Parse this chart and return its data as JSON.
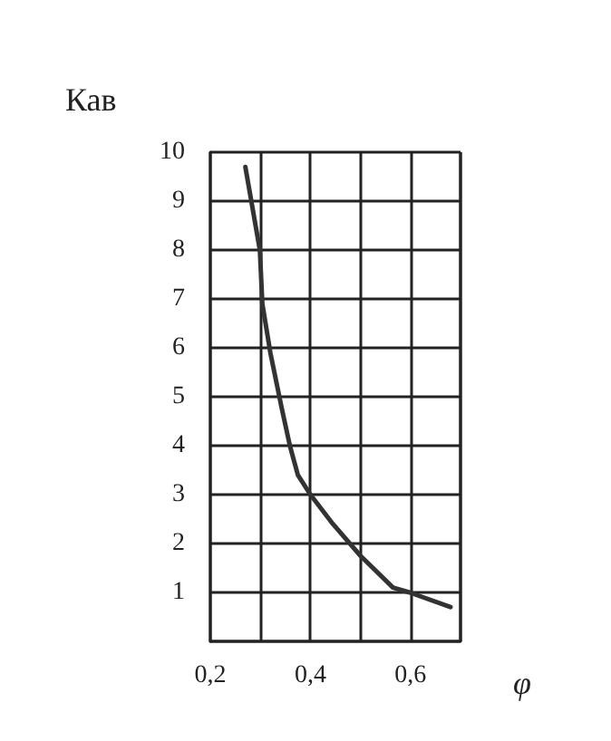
{
  "chart_data": {
    "type": "line",
    "xlabel": "φ",
    "ylabel": "Кав",
    "x": [
      0.27,
      0.299,
      0.304,
      0.32,
      0.342,
      0.359,
      0.375,
      0.4,
      0.445,
      0.5,
      0.565,
      0.598,
      0.68
    ],
    "series": [
      {
        "color": "#333333",
        "values": [
          9.7,
          8.0,
          6.9,
          5.9,
          4.8,
          4.0,
          3.4,
          3.0,
          2.4,
          1.75,
          1.1,
          1.0,
          0.7
        ]
      }
    ],
    "xlim": [
      0.2,
      0.7
    ],
    "xticks": [
      {
        "value": 0.2,
        "label": "0,2"
      },
      {
        "value": 0.3,
        "label": null
      },
      {
        "value": 0.4,
        "label": "0,4"
      },
      {
        "value": 0.5,
        "label": null
      },
      {
        "value": 0.6,
        "label": "0,6"
      },
      {
        "value": 0.7,
        "label": null
      }
    ],
    "ylim": [
      0,
      10
    ],
    "yticks": [
      1,
      2,
      3,
      4,
      5,
      6,
      7,
      8,
      9,
      10
    ],
    "grid": true,
    "marker": "none",
    "line_style": "solid"
  }
}
